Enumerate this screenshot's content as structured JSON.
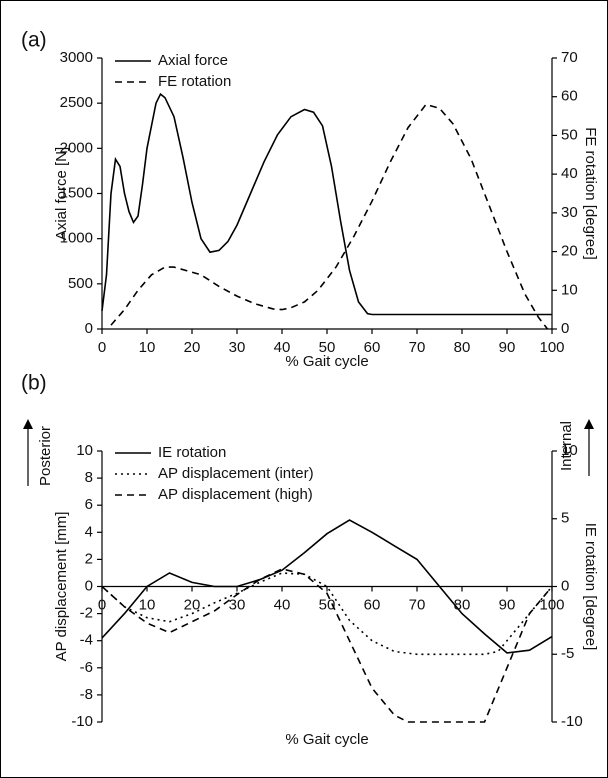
{
  "chart_data": [
    {
      "type": "line",
      "panel_label": "(a)",
      "x_label": "% Gait cycle",
      "y_label": "Axial force [N]",
      "y2_label": "FE rotation [degree]",
      "xlim": [
        0,
        100
      ],
      "xticks": [
        0,
        10,
        20,
        30,
        40,
        50,
        60,
        70,
        80,
        90,
        100
      ],
      "ylim": [
        0,
        3000
      ],
      "yticks": [
        0,
        500,
        1000,
        1500,
        2000,
        2500,
        3000
      ],
      "y2lim": [
        0,
        70
      ],
      "y2ticks": [
        0,
        10,
        20,
        30,
        40,
        50,
        60,
        70
      ],
      "series": [
        {
          "name": "Axial force",
          "color": "#000000",
          "dash": "solid",
          "x": [
            0,
            1,
            2,
            3,
            4,
            5,
            6,
            7,
            8,
            9,
            10,
            12,
            13,
            14,
            16,
            18,
            20,
            22,
            24,
            26,
            28,
            30,
            33,
            36,
            39,
            42,
            45,
            47,
            49,
            51,
            53,
            55,
            57,
            59,
            60,
            100
          ],
          "values": [
            200,
            600,
            1500,
            1880,
            1800,
            1500,
            1300,
            1180,
            1250,
            1600,
            2000,
            2500,
            2600,
            2560,
            2350,
            1900,
            1400,
            1000,
            850,
            870,
            970,
            1150,
            1500,
            1850,
            2150,
            2350,
            2430,
            2400,
            2250,
            1800,
            1200,
            650,
            300,
            170,
            160,
            160
          ]
        },
        {
          "name": "FE rotation",
          "color": "#000000",
          "dash": "dashed",
          "axis": "y2",
          "x": [
            2,
            5,
            8,
            11,
            14,
            16,
            19,
            22,
            26,
            30,
            34,
            38,
            40,
            42,
            45,
            48,
            52,
            56,
            60,
            64,
            68,
            72,
            75,
            78,
            82,
            86,
            90,
            94,
            97,
            99
          ],
          "values": [
            1,
            5,
            10,
            14,
            16,
            16,
            15,
            14,
            11,
            8.5,
            6.5,
            5.2,
            5,
            5.5,
            7,
            10,
            16,
            24,
            33,
            43,
            52,
            58,
            57,
            53,
            44,
            32,
            20,
            9,
            3,
            0
          ]
        }
      ]
    },
    {
      "type": "line",
      "panel_label": "(b)",
      "x_label": "% Gait cycle",
      "y_label": "AP displacement [mm]",
      "y2_label": "IE rotation [degree]",
      "y_annotation": "Posterior",
      "y2_annotation": "Internal",
      "xlim": [
        0,
        100
      ],
      "xticks": [
        0,
        10,
        20,
        30,
        40,
        50,
        60,
        70,
        80,
        90,
        100
      ],
      "ylim": [
        -10,
        10
      ],
      "yticks": [
        -10,
        -8,
        -6,
        -4,
        -2,
        0,
        2,
        4,
        6,
        8,
        10
      ],
      "y2lim": [
        -10,
        10
      ],
      "y2ticks": [
        -10,
        -5,
        0,
        5,
        10
      ],
      "series": [
        {
          "name": "IE rotation",
          "color": "#000000",
          "dash": "solid",
          "axis": "y2",
          "x": [
            0,
            5,
            10,
            15,
            20,
            25,
            30,
            35,
            40,
            45,
            50,
            55,
            60,
            65,
            70,
            75,
            80,
            85,
            90,
            95,
            100
          ],
          "values": [
            -3.8,
            -2,
            0,
            1,
            0.3,
            0,
            0,
            0.5,
            1.2,
            2.5,
            3.9,
            4.9,
            4,
            3,
            2,
            0,
            -2,
            -3.5,
            -4.9,
            -4.7,
            -3.7
          ]
        },
        {
          "name": "AP displacement (inter)",
          "color": "#000000",
          "dash": "dotted",
          "x": [
            0,
            5,
            10,
            15,
            20,
            25,
            30,
            35,
            40,
            45,
            50,
            55,
            60,
            65,
            70,
            75,
            80,
            85,
            88,
            90,
            95,
            100
          ],
          "values": [
            0,
            -1.5,
            -2.3,
            -2.6,
            -2,
            -1.2,
            -0.5,
            0.3,
            1,
            0.9,
            0,
            -2.5,
            -4,
            -4.8,
            -5,
            -5,
            -5,
            -5,
            -4.8,
            -4,
            -2,
            0
          ]
        },
        {
          "name": "AP displacement (high)",
          "color": "#000000",
          "dash": "dashed",
          "x": [
            0,
            5,
            10,
            15,
            20,
            25,
            30,
            35,
            40,
            45,
            50,
            55,
            60,
            65,
            68,
            70,
            75,
            80,
            85,
            90,
            95,
            100
          ],
          "values": [
            0,
            -1.5,
            -2.7,
            -3.4,
            -2.6,
            -1.8,
            -0.6,
            0.5,
            1.3,
            0.9,
            -0.5,
            -4,
            -7.5,
            -9.5,
            -10,
            -10,
            -10,
            -10,
            -10,
            -6,
            -2,
            0
          ]
        }
      ]
    }
  ]
}
